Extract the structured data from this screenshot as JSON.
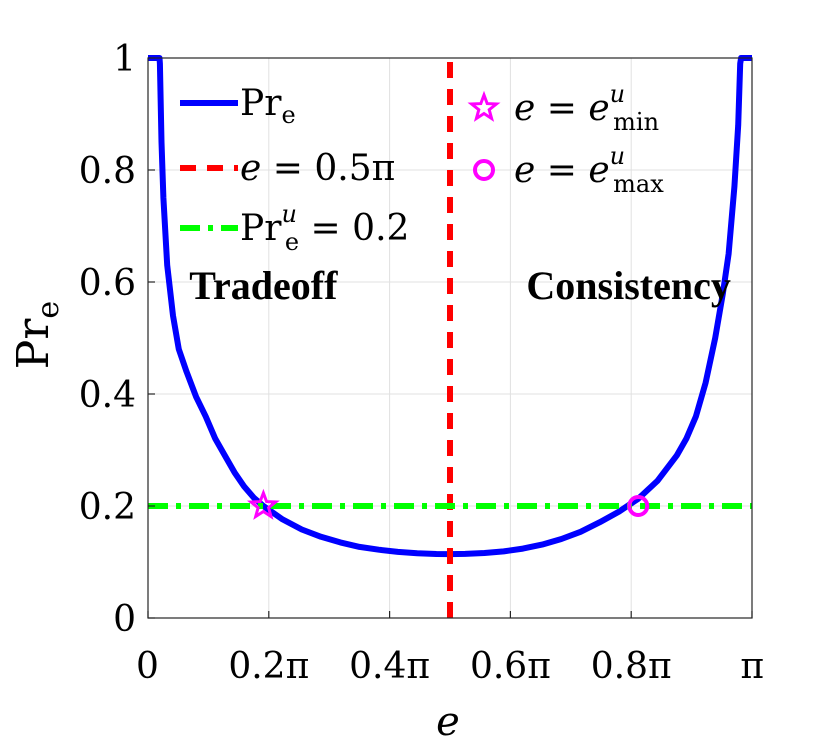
{
  "chart_data": {
    "type": "line",
    "xlabel": "e",
    "ylabel": "Pr",
    "ylabel_sub": "e",
    "xlim": [
      0,
      3.14159
    ],
    "ylim": [
      0,
      1
    ],
    "grid": true,
    "legend_placement": "top",
    "x_ticks": [
      {
        "value": 0,
        "label": "0"
      },
      {
        "value": 0.62832,
        "label": "0.2π"
      },
      {
        "value": 1.25664,
        "label": "0.4π"
      },
      {
        "value": 1.88496,
        "label": "0.6π"
      },
      {
        "value": 2.51327,
        "label": "0.8π"
      },
      {
        "value": 3.14159,
        "label": "π"
      }
    ],
    "y_ticks": [
      {
        "value": 0,
        "label": "0"
      },
      {
        "value": 0.2,
        "label": "0.2"
      },
      {
        "value": 0.4,
        "label": "0.4"
      },
      {
        "value": 0.6,
        "label": "0.6"
      },
      {
        "value": 0.8,
        "label": "0.8"
      },
      {
        "value": 1,
        "label": "1"
      }
    ],
    "series": [
      {
        "name": "Pr_e",
        "color": "#0000ff",
        "style": "solid",
        "points": [
          [
            0.0,
            1.0
          ],
          [
            0.06,
            1.0
          ],
          [
            0.062,
            0.99
          ],
          [
            0.07,
            0.85
          ],
          [
            0.08,
            0.75
          ],
          [
            0.1,
            0.63
          ],
          [
            0.13,
            0.54
          ],
          [
            0.16,
            0.48
          ],
          [
            0.2,
            0.44
          ],
          [
            0.25,
            0.395
          ],
          [
            0.3,
            0.36
          ],
          [
            0.35,
            0.32
          ],
          [
            0.4,
            0.29
          ],
          [
            0.45,
            0.26
          ],
          [
            0.5,
            0.235
          ],
          [
            0.55,
            0.215
          ],
          [
            0.6,
            0.2
          ],
          [
            0.7,
            0.176
          ],
          [
            0.8,
            0.158
          ],
          [
            0.9,
            0.145
          ],
          [
            1.0,
            0.135
          ],
          [
            1.1,
            0.127
          ],
          [
            1.2,
            0.122
          ],
          [
            1.3,
            0.118
          ],
          [
            1.4,
            0.1155
          ],
          [
            1.5,
            0.1143
          ],
          [
            1.5708,
            0.1141
          ],
          [
            1.65,
            0.1145
          ],
          [
            1.75,
            0.116
          ],
          [
            1.85,
            0.119
          ],
          [
            1.95,
            0.124
          ],
          [
            2.05,
            0.131
          ],
          [
            2.15,
            0.141
          ],
          [
            2.25,
            0.154
          ],
          [
            2.35,
            0.171
          ],
          [
            2.45,
            0.19
          ],
          [
            2.55,
            0.213
          ],
          [
            2.65,
            0.245
          ],
          [
            2.75,
            0.29
          ],
          [
            2.8,
            0.32
          ],
          [
            2.85,
            0.36
          ],
          [
            2.9,
            0.42
          ],
          [
            2.95,
            0.5
          ],
          [
            2.99,
            0.58
          ],
          [
            3.02,
            0.65
          ],
          [
            3.05,
            0.77
          ],
          [
            3.07,
            0.88
          ],
          [
            3.08,
            0.99
          ],
          [
            3.085,
            1.0
          ],
          [
            3.14159,
            1.0
          ]
        ]
      },
      {
        "name": "e = 0.5π",
        "color": "#ff0000",
        "style": "dashed",
        "points": [
          [
            1.5708,
            0
          ],
          [
            1.5708,
            1
          ]
        ]
      },
      {
        "name": "Pr_e^u = 0.2",
        "color": "#00ff00",
        "style": "dashdot",
        "points": [
          [
            0,
            0.2
          ],
          [
            3.14159,
            0.2
          ]
        ]
      }
    ],
    "markers": [
      {
        "name": "e = e^u_min",
        "shape": "star",
        "color": "#ff00ff",
        "x": 0.6,
        "y": 0.2
      },
      {
        "name": "e = e^u_max",
        "shape": "circle",
        "color": "#ff00ff",
        "x": 2.55,
        "y": 0.2
      }
    ],
    "annotations": [
      {
        "text": "Tradeoff",
        "x": 0.6,
        "y": 0.57
      },
      {
        "text": "Consistency",
        "x": 2.5,
        "y": 0.57
      }
    ],
    "legend": [
      {
        "symbol": "solid",
        "color": "#0000ff",
        "base": "Pr",
        "sub": "e",
        "sup": "",
        "rest": ""
      },
      {
        "symbol": "dashed",
        "color": "#ff0000",
        "base": "e",
        "sub": "",
        "sup": "",
        "rest": " = 0.5π"
      },
      {
        "symbol": "dashdot",
        "color": "#00ff00",
        "base": "Pr",
        "sub": "e",
        "sup": "u",
        "rest": " = 0.2"
      },
      {
        "symbol": "star",
        "color": "#ff00ff",
        "base": "e = e",
        "sub": "min",
        "sup": "u",
        "rest": ""
      },
      {
        "symbol": "circle",
        "color": "#ff00ff",
        "base": "e = e",
        "sub": "max",
        "sup": "u",
        "rest": ""
      }
    ]
  }
}
